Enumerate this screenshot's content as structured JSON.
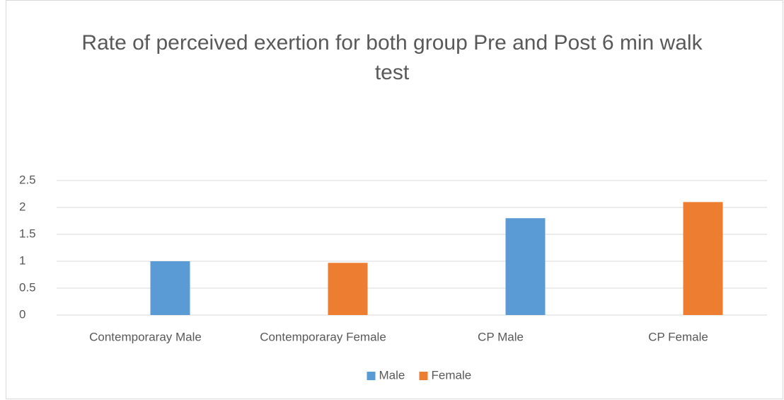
{
  "chart_data": {
    "type": "bar",
    "title": "Rate of perceived exertion for both group Pre and Post 6 min walk test",
    "categories": [
      "Contemporaray Male",
      "Contemporaray Female",
      "CP Male",
      "CP Female"
    ],
    "series": [
      {
        "name": "Male",
        "color": "#5b9bd5",
        "values": [
          1.0,
          null,
          1.8,
          null
        ]
      },
      {
        "name": "Female",
        "color": "#ed7d31",
        "values": [
          null,
          0.97,
          null,
          2.1
        ]
      }
    ],
    "ylim": [
      0,
      2.5
    ],
    "yticks": [
      0,
      0.5,
      1,
      1.5,
      2,
      2.5
    ],
    "grid": true,
    "legend": "bottom"
  }
}
